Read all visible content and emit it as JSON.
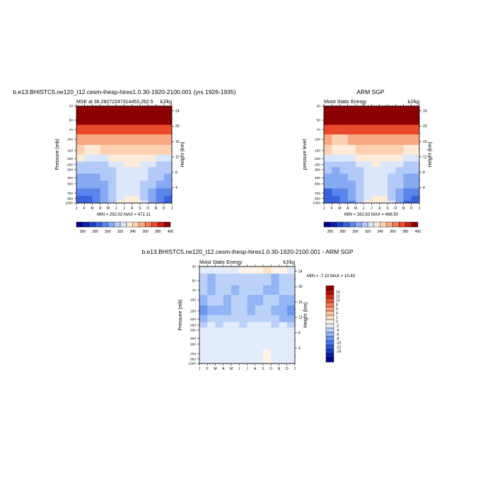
{
  "colors": {
    "mse_scale": [
      "#00008b",
      "#0b1fa8",
      "#1d3fc8",
      "#3a62dd",
      "#5a85ea",
      "#86a9f2",
      "#b3c9f7",
      "#dbe6fb",
      "#fdebd8",
      "#fcd0b0",
      "#f8a882",
      "#f47a56",
      "#e84a2b",
      "#c81f10",
      "#8b0000"
    ],
    "diff_scale": [
      "#00008b",
      "#0a1ea6",
      "#173dc2",
      "#2b5bd8",
      "#4779e6",
      "#6b97ef",
      "#93b5f5",
      "#bcd1f8",
      "#e3ecfb",
      "#fff3e8",
      "#fde0c6",
      "#fbc49f",
      "#f8a37a",
      "#f47b54",
      "#ea5433",
      "#d62a16",
      "#b50e06",
      "#8b0000"
    ]
  },
  "labels": {
    "p1_suptitle": "b.e13.BHISTC5.ne120_t12.cesm-ihesp-hires1.0.30-1920-2100.001 (yrs 1926-1935)",
    "p1_lefttitle": "MSE at 36.28272247314453,262.5",
    "p1_units": "kJ/kg",
    "p1_minmax": "MIN = 292.02 MAX = 472.11",
    "p2_suptitle": "ARM SGP",
    "p2_lefttitle": "Moist Static Energy",
    "p2_units": "kJ/kg",
    "p2_minmax": "MIN = 282.63 MAX = 468.50",
    "p3_suptitle": "b.e13.BHISTC5.ne120_t12.cesm-ihesp-hires1.0.30-1920-2100.001 - ARM SGP",
    "p3_lefttitle": "Moist Static Energy",
    "p3_units": "kJ/kg",
    "p3_minmax": "MIN =  -7.10 MAX =  10.40"
  },
  "chart_data": [
    {
      "type": "heatmap",
      "title": "b.e13.BHISTC5.ne120_t12.cesm-ihesp-hires1.0.30-1920-2100.001 (yrs 1926-1935)",
      "subtitle": "MSE at 36.28272247314453,262.5",
      "units": "kJ/kg",
      "xlabel": "",
      "ylabel": "Pressure (mb)",
      "ylabel_right": "Height (km)",
      "x_ticks": [
        "J",
        "F",
        "M",
        "A",
        "M",
        "J",
        "J",
        "A",
        "S",
        "O",
        "N",
        "D",
        "J"
      ],
      "y_ticks": [
        30,
        50,
        70,
        100,
        150,
        200,
        250,
        300,
        400,
        500,
        700,
        850,
        1000
      ],
      "y_right_ticks": [
        4,
        8,
        12,
        16,
        20,
        24
      ],
      "colorbar_levels": [
        260,
        280,
        300,
        320,
        340,
        360,
        380,
        400
      ],
      "min_max": "MIN = 292.02 MAX = 472.11",
      "profile": [
        {
          "p": 30,
          "v": [
            430,
            430,
            430,
            430,
            430,
            430,
            430,
            430,
            430,
            430,
            430,
            430
          ]
        },
        {
          "p": 50,
          "v": [
            400,
            400,
            400,
            400,
            400,
            400,
            400,
            400,
            400,
            400,
            400,
            400
          ]
        },
        {
          "p": 70,
          "v": [
            385,
            384,
            384,
            384,
            385,
            386,
            386,
            386,
            385,
            385,
            384,
            384
          ]
        },
        {
          "p": 100,
          "v": [
            362,
            360,
            360,
            361,
            363,
            366,
            368,
            367,
            364,
            362,
            361,
            361
          ]
        },
        {
          "p": 150,
          "v": [
            351,
            349,
            349,
            350,
            352,
            355,
            357,
            356,
            353,
            351,
            350,
            350
          ]
        },
        {
          "p": 200,
          "v": [
            340,
            338,
            338,
            339,
            342,
            346,
            348,
            347,
            343,
            341,
            339,
            339
          ]
        },
        {
          "p": 250,
          "v": [
            327,
            325,
            326,
            328,
            333,
            338,
            341,
            340,
            336,
            331,
            328,
            327
          ]
        },
        {
          "p": 300,
          "v": [
            321,
            320,
            321,
            323,
            329,
            335,
            338,
            337,
            332,
            326,
            323,
            322
          ]
        },
        {
          "p": 400,
          "v": [
            318,
            317,
            318,
            321,
            327,
            333,
            336,
            335,
            330,
            324,
            320,
            319
          ]
        },
        {
          "p": 500,
          "v": [
            314,
            313,
            314,
            318,
            325,
            331,
            334,
            333,
            328,
            321,
            316,
            315
          ]
        },
        {
          "p": 700,
          "v": [
            301,
            302,
            305,
            312,
            322,
            333,
            337,
            335,
            326,
            315,
            307,
            302
          ]
        },
        {
          "p": 850,
          "v": [
            297,
            299,
            303,
            311,
            324,
            338,
            344,
            341,
            329,
            314,
            304,
            298
          ]
        },
        {
          "p": 1000,
          "v": [
            294,
            296,
            301,
            310,
            325,
            341,
            348,
            344,
            331,
            314,
            302,
            295
          ]
        }
      ]
    },
    {
      "type": "heatmap",
      "title": "ARM SGP",
      "subtitle": "Moist Static Energy",
      "units": "kJ/kg",
      "xlabel": "",
      "ylabel": "pressure level",
      "ylabel_right": "Height (km)",
      "x_ticks": [
        "J",
        "F",
        "M",
        "A",
        "M",
        "J",
        "J",
        "A",
        "S",
        "O",
        "N",
        "D",
        "J"
      ],
      "y_ticks": [
        30,
        50,
        70,
        100,
        150,
        200,
        250,
        300,
        400,
        500,
        700,
        850,
        1000
      ],
      "y_right_ticks": [
        4,
        8,
        12,
        16,
        20,
        24
      ],
      "colorbar_levels": [
        260,
        280,
        300,
        320,
        340,
        360,
        380,
        400
      ],
      "min_max": "MIN = 282.63 MAX = 468.50",
      "profile": [
        {
          "p": 30,
          "v": [
            430,
            430,
            430,
            430,
            430,
            430,
            430,
            430,
            430,
            430,
            430,
            430
          ]
        },
        {
          "p": 50,
          "v": [
            400,
            400,
            400,
            400,
            400,
            400,
            400,
            400,
            400,
            400,
            400,
            400
          ]
        },
        {
          "p": 70,
          "v": [
            385,
            384,
            384,
            384,
            385,
            386,
            386,
            386,
            385,
            385,
            384,
            384
          ]
        },
        {
          "p": 100,
          "v": [
            361,
            359,
            359,
            360,
            362,
            365,
            367,
            366,
            363,
            361,
            360,
            360
          ]
        },
        {
          "p": 150,
          "v": [
            350,
            348,
            348,
            349,
            351,
            354,
            356,
            355,
            352,
            350,
            349,
            349
          ]
        },
        {
          "p": 200,
          "v": [
            339,
            337,
            337,
            338,
            341,
            345,
            347,
            346,
            342,
            340,
            338,
            338
          ]
        },
        {
          "p": 250,
          "v": [
            326,
            324,
            325,
            327,
            332,
            337,
            340,
            339,
            335,
            330,
            327,
            326
          ]
        },
        {
          "p": 300,
          "v": [
            320,
            319,
            320,
            322,
            328,
            334,
            337,
            336,
            331,
            325,
            322,
            321
          ]
        },
        {
          "p": 400,
          "v": [
            317,
            316,
            317,
            320,
            326,
            332,
            335,
            334,
            329,
            323,
            319,
            318
          ]
        },
        {
          "p": 500,
          "v": [
            313,
            312,
            313,
            317,
            324,
            330,
            333,
            332,
            327,
            320,
            315,
            314
          ]
        },
        {
          "p": 700,
          "v": [
            299,
            300,
            304,
            311,
            321,
            332,
            336,
            334,
            325,
            314,
            305,
            300
          ]
        },
        {
          "p": 850,
          "v": [
            294,
            297,
            302,
            310,
            323,
            337,
            343,
            340,
            328,
            312,
            301,
            295
          ]
        },
        {
          "p": 1000,
          "v": [
            291,
            294,
            300,
            309,
            324,
            340,
            347,
            343,
            330,
            312,
            299,
            292
          ]
        }
      ]
    },
    {
      "type": "heatmap",
      "title": "b.e13.BHISTC5.ne120_t12.cesm-ihesp-hires1.0.30-1920-2100.001 - ARM SGP",
      "subtitle": "Moist Static Energy",
      "units": "kJ/kg",
      "xlabel": "",
      "ylabel": "Pressure (mb)",
      "ylabel_right": "Height (km)",
      "x_ticks": [
        "J",
        "F",
        "M",
        "A",
        "M",
        "J",
        "J",
        "A",
        "S",
        "O",
        "N",
        "D",
        "J"
      ],
      "y_ticks": [
        30,
        50,
        70,
        100,
        150,
        200,
        250,
        300,
        400,
        500,
        700,
        850,
        1000
      ],
      "y_right_ticks": [
        4,
        8,
        12,
        16,
        20,
        24
      ],
      "colorbar_levels": [
        14,
        12,
        10,
        8,
        6,
        4,
        2,
        0,
        -2,
        -4,
        -6,
        -8,
        -10,
        -12,
        -14
      ],
      "min_max": "MIN =  -7.10 MAX =  10.40",
      "profile": [
        {
          "p": 30,
          "v": [
            1,
            0,
            1,
            1,
            1,
            2,
            2,
            3,
            4,
            3,
            2,
            1
          ]
        },
        {
          "p": 50,
          "v": [
            -2,
            -3,
            -1,
            -2,
            -1,
            -2,
            -2,
            -1,
            -2,
            -3,
            -2,
            -2
          ]
        },
        {
          "p": 70,
          "v": [
            -2,
            -3,
            -2,
            -2,
            -3,
            -2,
            -2,
            -2,
            -3,
            -3,
            -2,
            -2
          ]
        },
        {
          "p": 100,
          "v": [
            -3,
            -2,
            -2,
            -3,
            -2,
            -2,
            -3,
            -3,
            -2,
            -2,
            -3,
            -3
          ]
        },
        {
          "p": 150,
          "v": [
            -6,
            -4,
            -3,
            -3,
            -2,
            -2,
            -3,
            -2,
            -2,
            -3,
            -4,
            -5
          ]
        },
        {
          "p": 200,
          "v": [
            -3,
            -2,
            -1,
            -2,
            -1,
            -1,
            -2,
            -1,
            -1,
            -2,
            -3,
            -3
          ]
        },
        {
          "p": 250,
          "v": [
            -1,
            0,
            -1,
            1,
            0,
            -1,
            0,
            1,
            0,
            -1,
            0,
            -1
          ]
        },
        {
          "p": 300,
          "v": [
            0,
            1,
            0,
            1,
            1,
            0,
            1,
            1,
            0,
            1,
            0,
            0
          ]
        },
        {
          "p": 400,
          "v": [
            1,
            1,
            0,
            1,
            1,
            1,
            1,
            0,
            1,
            1,
            1,
            0
          ]
        },
        {
          "p": 500,
          "v": [
            1,
            1,
            1,
            1,
            1,
            1,
            1,
            1,
            1,
            1,
            1,
            1
          ]
        },
        {
          "p": 700,
          "v": [
            1,
            1,
            1,
            1,
            1,
            1,
            1,
            1,
            2,
            1,
            1,
            1
          ]
        },
        {
          "p": 850,
          "v": [
            1,
            1,
            1,
            1,
            1,
            1,
            1,
            1,
            3,
            1,
            1,
            1
          ]
        },
        {
          "p": 1000,
          "v": [
            1,
            1,
            1,
            1,
            1,
            1,
            1,
            1,
            2,
            1,
            1,
            1
          ]
        }
      ]
    }
  ]
}
